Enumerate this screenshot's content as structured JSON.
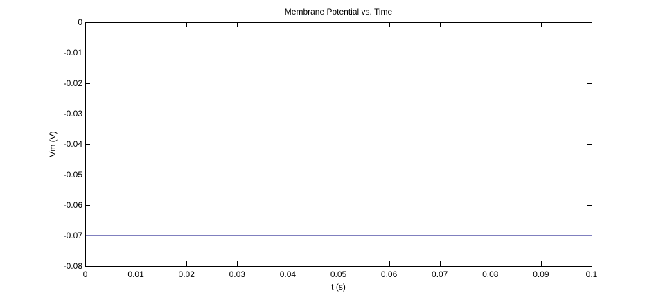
{
  "chart_data": {
    "type": "line",
    "title": "Membrane Potential vs. Time",
    "xlabel": "t (s)",
    "ylabel": "Vm (V)",
    "xlim": [
      0,
      0.1
    ],
    "ylim": [
      -0.08,
      0
    ],
    "grid": false,
    "x_ticks": [
      0,
      0.01,
      0.02,
      0.03,
      0.04,
      0.05,
      0.06,
      0.07,
      0.08,
      0.09,
      0.1
    ],
    "x_tick_labels": [
      "0",
      "0.01",
      "0.02",
      "0.03",
      "0.04",
      "0.05",
      "0.06",
      "0.07",
      "0.08",
      "0.09",
      "0.1"
    ],
    "y_ticks": [
      0,
      -0.01,
      -0.02,
      -0.03,
      -0.04,
      -0.05,
      -0.06,
      -0.07,
      -0.08
    ],
    "y_tick_labels": [
      "0",
      "-0.01",
      "-0.02",
      "-0.03",
      "-0.04",
      "-0.05",
      "-0.06",
      "-0.07",
      "-0.08"
    ],
    "series": [
      {
        "color": "#00007f",
        "x": [
          0,
          0.1
        ],
        "y": [
          -0.07,
          -0.07
        ]
      }
    ]
  }
}
